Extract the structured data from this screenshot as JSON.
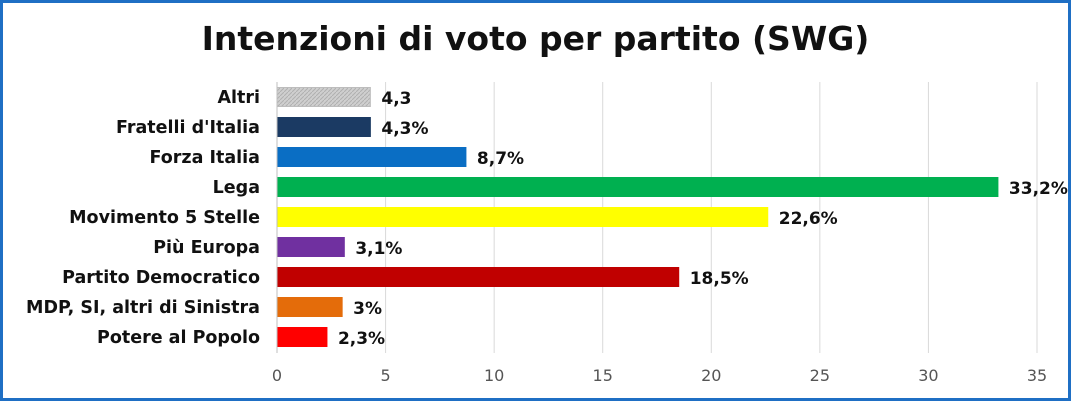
{
  "chart_data": {
    "type": "bar",
    "orientation": "horizontal",
    "title": "Intenzioni di voto per partito (SWG)",
    "categories": [
      "Altri",
      "Fratelli d'Italia",
      "Forza Italia",
      "Lega",
      "Movimento 5 Stelle",
      "Più Europa",
      "Partito Democratico",
      "MDP, SI, altri di Sinistra",
      "Potere al Popolo"
    ],
    "values": [
      4.3,
      4.3,
      8.7,
      33.2,
      22.6,
      3.1,
      18.5,
      3.0,
      2.3
    ],
    "data_labels": [
      "4,3",
      "4,3%",
      "8,7%",
      "33,2%",
      "22,6%",
      "3,1%",
      "18,5%",
      "3%",
      "2,3%"
    ],
    "colors": [
      "#c8c8c8",
      "#1b3a63",
      "#0a6ec4",
      "#00b050",
      "#ffff00",
      "#7030a0",
      "#c00000",
      "#e46c0a",
      "#ff0000"
    ],
    "xlim": [
      0,
      35
    ],
    "xticks": [
      0,
      5,
      10,
      15,
      20,
      25,
      30,
      35
    ],
    "xtick_labels": [
      "0",
      "5",
      "10",
      "15",
      "20",
      "25",
      "30",
      "35"
    ],
    "grid": true,
    "xlabel": "",
    "ylabel": "",
    "legend": "none",
    "border_color": "#1f6fc4"
  }
}
